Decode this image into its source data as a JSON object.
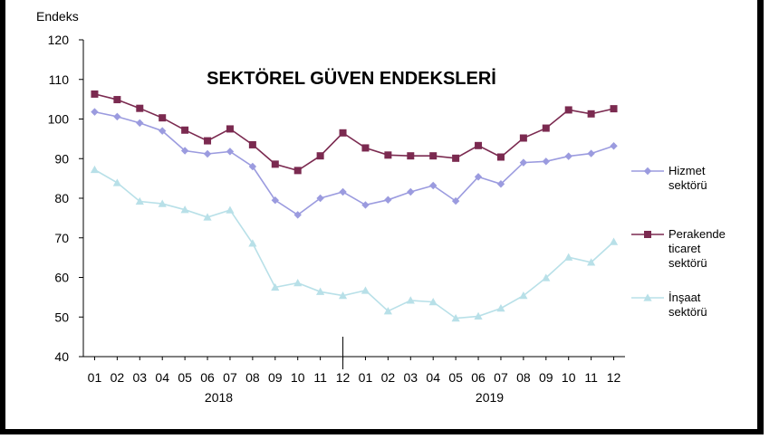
{
  "chart_data": {
    "type": "line",
    "title": "SEKTÖREL GÜVEN ENDEKSLERİ",
    "ylabel": "Endeks",
    "xlabel": "",
    "ylim": [
      40,
      120
    ],
    "yticks": [
      40,
      50,
      60,
      70,
      80,
      90,
      100,
      110,
      120
    ],
    "grid": false,
    "legend_position": "right",
    "categories": [
      "01",
      "02",
      "03",
      "04",
      "05",
      "06",
      "07",
      "08",
      "09",
      "10",
      "11",
      "12",
      "01",
      "02",
      "03",
      "04",
      "05",
      "06",
      "07",
      "08",
      "09",
      "10",
      "11",
      "12"
    ],
    "year_labels": [
      {
        "label": "2018",
        "center_index": 5.5
      },
      {
        "label": "2019",
        "center_index": 17.5
      }
    ],
    "year_divider_after_index": 11,
    "series": [
      {
        "name": "Hizmet sektörü",
        "legend_lines": [
          "Hizmet",
          "sektörü"
        ],
        "color": "#9B9BDF",
        "marker": "diamond",
        "values": [
          101.8,
          100.6,
          99.0,
          97.0,
          92.0,
          91.2,
          91.8,
          88.0,
          79.5,
          75.8,
          80.0,
          81.6,
          78.3,
          79.6,
          81.6,
          83.2,
          79.3,
          85.4,
          83.6,
          89.0,
          89.3,
          90.6,
          91.3,
          93.2
        ]
      },
      {
        "name": "Perakende ticaret sektörü",
        "legend_lines": [
          "Perakende",
          "ticaret",
          "sektörü"
        ],
        "color": "#7B2A50",
        "marker": "square",
        "values": [
          106.3,
          104.9,
          102.7,
          100.3,
          97.2,
          94.5,
          97.5,
          93.5,
          88.6,
          87.0,
          90.7,
          96.5,
          92.7,
          90.9,
          90.7,
          90.7,
          90.1,
          93.3,
          90.4,
          95.2,
          97.7,
          102.3,
          101.3,
          102.6
        ]
      },
      {
        "name": "İnşaat sektörü",
        "legend_lines": [
          "İnşaat",
          "sektörü"
        ],
        "color": "#B8E0E8",
        "marker": "triangle",
        "values": [
          87.2,
          83.9,
          79.2,
          78.6,
          77.1,
          75.2,
          77.0,
          68.6,
          57.5,
          58.6,
          56.4,
          55.4,
          56.7,
          51.5,
          54.2,
          53.8,
          49.7,
          50.2,
          52.2,
          55.4,
          59.9,
          65.1,
          63.8,
          69.0
        ]
      }
    ]
  }
}
